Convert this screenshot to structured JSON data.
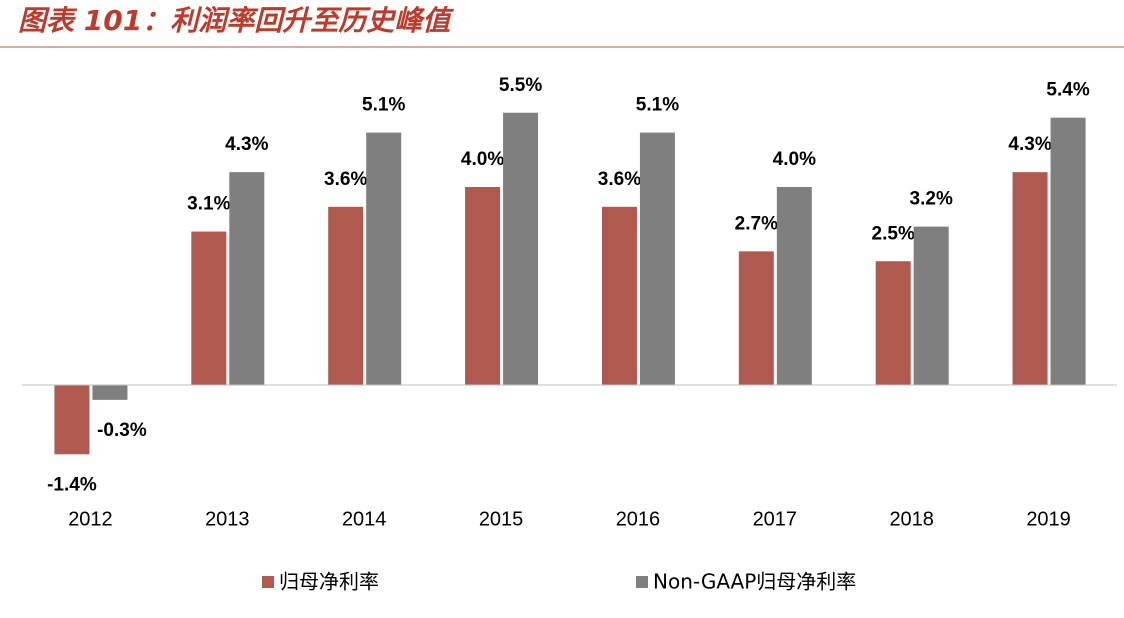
{
  "chart_data": {
    "type": "bar",
    "title": "图表 101：利润率回升至历史峰值",
    "categories": [
      "2012",
      "2013",
      "2014",
      "2015",
      "2016",
      "2017",
      "2018",
      "2019"
    ],
    "series": [
      {
        "name": "归母净利率",
        "color": "#b05a4f",
        "values": [
          -1.4,
          3.1,
          3.6,
          4.0,
          3.6,
          2.7,
          2.5,
          4.3
        ],
        "value_labels": [
          "-1.4%",
          "3.1%",
          "3.6%",
          "4.0%",
          "3.6%",
          "2.7%",
          "2.5%",
          "4.3%"
        ]
      },
      {
        "name": "Non-GAAP归母净利率",
        "color": "#7f7f7f",
        "values": [
          -0.3,
          4.3,
          5.1,
          5.5,
          5.1,
          4.0,
          3.2,
          5.4
        ],
        "value_labels": [
          "-0.3%",
          "4.3%",
          "5.1%",
          "5.5%",
          "5.1%",
          "4.0%",
          "3.2%",
          "5.4%"
        ]
      }
    ]
  }
}
